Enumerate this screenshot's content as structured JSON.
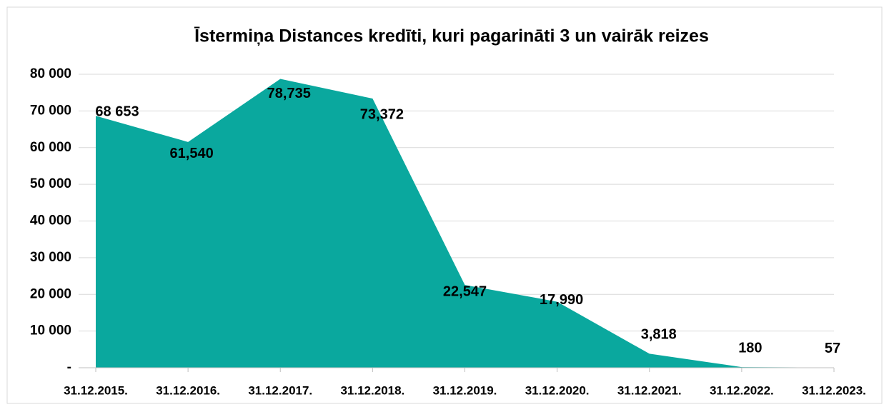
{
  "chart_data": {
    "type": "area",
    "title": "Īstermiņa Distances kredīti, kuri pagarināti 3 un vairāk reizes",
    "categories": [
      "31.12.2015.",
      "31.12.2016.",
      "31.12.2017.",
      "31.12.2018.",
      "31.12.2019.",
      "31.12.2020.",
      "31.12.2021.",
      "31.12.2022.",
      "31.12.2023."
    ],
    "values": [
      68653,
      61540,
      78735,
      73372,
      22547,
      17990,
      3818,
      180,
      57
    ],
    "value_labels": [
      "68 653",
      "61,540",
      "78,735",
      "73,372",
      "22,547",
      "17,990",
      "3,818",
      "180",
      "57"
    ],
    "color": "#0aa89e",
    "ylim": [
      0,
      80000
    ],
    "yticks": [
      {
        "value": 0,
        "label": "-"
      },
      {
        "value": 10000,
        "label": "10 000"
      },
      {
        "value": 20000,
        "label": "20 000"
      },
      {
        "value": 30000,
        "label": "30 000"
      },
      {
        "value": 40000,
        "label": "40 000"
      },
      {
        "value": 50000,
        "label": "50 000"
      },
      {
        "value": 60000,
        "label": "60 000"
      },
      {
        "value": 70000,
        "label": "70 000"
      },
      {
        "value": 80000,
        "label": "80 000"
      }
    ],
    "grid": true
  }
}
